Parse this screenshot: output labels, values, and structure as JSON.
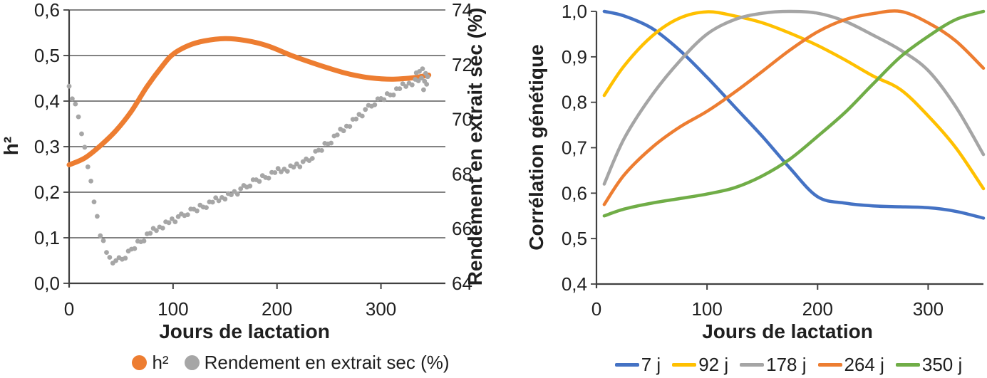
{
  "chart_data": [
    {
      "type": "line+scatter",
      "xlabel": "Jours de lactation",
      "x_ticks": [
        0,
        100,
        200,
        300
      ],
      "xlim": [
        0,
        362
      ],
      "ylabel_left": "h²",
      "ylim_left": [
        0.0,
        0.6
      ],
      "yticks_left": [
        "0,6",
        "0,5",
        "0,4",
        "0,3",
        "0,2",
        "0,1",
        "0,0"
      ],
      "ylabel_right": "Rendement en extrait sec (%)",
      "ylim_right": [
        64,
        74
      ],
      "yticks_right": [
        "74",
        "72",
        "70",
        "68",
        "66",
        "64"
      ],
      "grid": true,
      "legend_position": "bottom",
      "series": [
        {
          "name": "h²",
          "type": "line",
          "axis": "left",
          "color": "#ED7D31",
          "line_width": 7,
          "points": [
            [
              0,
              0.26
            ],
            [
              15,
              0.275
            ],
            [
              30,
              0.302
            ],
            [
              45,
              0.335
            ],
            [
              60,
              0.378
            ],
            [
              75,
              0.432
            ],
            [
              90,
              0.478
            ],
            [
              100,
              0.503
            ],
            [
              115,
              0.522
            ],
            [
              130,
              0.532
            ],
            [
              150,
              0.537
            ],
            [
              170,
              0.533
            ],
            [
              190,
              0.522
            ],
            [
              214,
              0.5
            ],
            [
              230,
              0.487
            ],
            [
              250,
              0.472
            ],
            [
              270,
              0.459
            ],
            [
              290,
              0.451
            ],
            [
              310,
              0.448
            ],
            [
              330,
              0.451
            ],
            [
              346,
              0.457
            ]
          ]
        },
        {
          "name": "Rendement en extrait sec (%)",
          "type": "scatter",
          "axis": "right",
          "color": "#A6A6A6",
          "marker_radius": 3.4,
          "points": [
            [
              0,
              71.21
            ],
            [
              3,
              70.75
            ],
            [
              6,
              70.56
            ],
            [
              9,
              70.09
            ],
            [
              12,
              69.47
            ],
            [
              15,
              68.98
            ],
            [
              18,
              68.26
            ],
            [
              21,
              67.74
            ],
            [
              24,
              66.98
            ],
            [
              27,
              66.45
            ],
            [
              30,
              65.74
            ],
            [
              33,
              65.56
            ],
            [
              36,
              65.13
            ],
            [
              39,
              64.95
            ],
            [
              42,
              64.74
            ],
            [
              45,
              64.83
            ],
            [
              48,
              64.94
            ],
            [
              51,
              64.88
            ],
            [
              54,
              64.92
            ],
            [
              57,
              65.18
            ],
            [
              60,
              65.25
            ],
            [
              63,
              65.27
            ],
            [
              66,
              65.54
            ],
            [
              69,
              65.52
            ],
            [
              72,
              65.55
            ],
            [
              75,
              65.81
            ],
            [
              78,
              65.83
            ],
            [
              81,
              66.01
            ],
            [
              84,
              65.93
            ],
            [
              87,
              66.06
            ],
            [
              90,
              66.02
            ],
            [
              93,
              66.25
            ],
            [
              96,
              66.22
            ],
            [
              99,
              66.36
            ],
            [
              102,
              66.25
            ],
            [
              105,
              66.44
            ],
            [
              108,
              66.54
            ],
            [
              111,
              66.48
            ],
            [
              114,
              66.51
            ],
            [
              117,
              66.72
            ],
            [
              120,
              66.71
            ],
            [
              123,
              66.65
            ],
            [
              126,
              66.86
            ],
            [
              129,
              66.79
            ],
            [
              132,
              66.77
            ],
            [
              135,
              66.98
            ],
            [
              138,
              66.97
            ],
            [
              141,
              67.13
            ],
            [
              144,
              67.02
            ],
            [
              147,
              67.14
            ],
            [
              150,
              67.08
            ],
            [
              153,
              67.28
            ],
            [
              156,
              67.24
            ],
            [
              159,
              67.36
            ],
            [
              162,
              67.26
            ],
            [
              165,
              67.46
            ],
            [
              168,
              67.58
            ],
            [
              171,
              67.52
            ],
            [
              174,
              67.56
            ],
            [
              177,
              67.79
            ],
            [
              180,
              67.79
            ],
            [
              183,
              67.73
            ],
            [
              186,
              67.94
            ],
            [
              189,
              67.87
            ],
            [
              192,
              67.85
            ],
            [
              195,
              68.06
            ],
            [
              198,
              68.05
            ],
            [
              201,
              68.2
            ],
            [
              204,
              68.08
            ],
            [
              207,
              68.18
            ],
            [
              210,
              68.1
            ],
            [
              213,
              68.3
            ],
            [
              216,
              68.25
            ],
            [
              219,
              68.37
            ],
            [
              222,
              68.26
            ],
            [
              225,
              68.45
            ],
            [
              228,
              68.55
            ],
            [
              231,
              68.49
            ],
            [
              234,
              68.57
            ],
            [
              237,
              68.83
            ],
            [
              240,
              68.87
            ],
            [
              243,
              68.86
            ],
            [
              246,
              69.12
            ],
            [
              249,
              69.1
            ],
            [
              252,
              69.13
            ],
            [
              255,
              69.39
            ],
            [
              258,
              69.43
            ],
            [
              261,
              69.64
            ],
            [
              264,
              69.58
            ],
            [
              267,
              69.75
            ],
            [
              270,
              69.74
            ],
            [
              273,
              70.0
            ],
            [
              276,
              70.01
            ],
            [
              279,
              70.18
            ],
            [
              282,
              70.12
            ],
            [
              285,
              70.36
            ],
            [
              288,
              70.51
            ],
            [
              291,
              70.48
            ],
            [
              294,
              70.53
            ],
            [
              297,
              70.75
            ],
            [
              300,
              70.76
            ],
            [
              303,
              70.72
            ],
            [
              306,
              70.94
            ],
            [
              309,
              70.89
            ],
            [
              312,
              70.89
            ],
            [
              315,
              71.12
            ],
            [
              318,
              71.12
            ],
            [
              321,
              71.3
            ],
            [
              324,
              71.2
            ],
            [
              327,
              71.32
            ],
            [
              330,
              71.26
            ],
            [
              333,
              71.46
            ],
            [
              336,
              71.41
            ],
            [
              339,
              71.51
            ],
            [
              342,
              71.39
            ],
            [
              345,
              71.56
            ],
            [
              334,
              71.7
            ],
            [
              337,
              71.75
            ],
            [
              340,
              71.85
            ],
            [
              343,
              71.68
            ],
            [
              344,
              71.28
            ],
            [
              341,
              71.08
            ]
          ]
        }
      ]
    },
    {
      "type": "line",
      "xlabel": "Jours de lactation",
      "x_ticks": [
        0,
        100,
        200,
        300
      ],
      "xlim": [
        0,
        350
      ],
      "ylabel": "Corrélation génétique",
      "ylim": [
        0.4,
        1.0
      ],
      "yticks": [
        "1,0",
        "0,9",
        "0,8",
        "0,7",
        "0,6",
        "0,5",
        "0,4"
      ],
      "grid": false,
      "legend_position": "bottom",
      "x": [
        7,
        25,
        50,
        75,
        100,
        125,
        150,
        175,
        200,
        225,
        250,
        275,
        300,
        325,
        350
      ],
      "series": [
        {
          "name": "7 j",
          "color": "#4472C4",
          "values": [
            1.0,
            0.99,
            0.963,
            0.915,
            0.855,
            0.79,
            0.725,
            0.655,
            0.592,
            0.578,
            0.572,
            0.57,
            0.568,
            0.56,
            0.545
          ]
        },
        {
          "name": "92 j",
          "color": "#FFC000",
          "values": [
            0.815,
            0.88,
            0.945,
            0.985,
            0.999,
            0.99,
            0.975,
            0.952,
            0.925,
            0.893,
            0.858,
            0.828,
            0.77,
            0.7,
            0.61
          ]
        },
        {
          "name": "178 j",
          "color": "#A5A5A5",
          "values": [
            0.62,
            0.72,
            0.815,
            0.89,
            0.95,
            0.982,
            0.996,
            1.0,
            0.996,
            0.978,
            0.948,
            0.915,
            0.87,
            0.79,
            0.685
          ]
        },
        {
          "name": "264 j",
          "color": "#ED7D31",
          "values": [
            0.575,
            0.64,
            0.7,
            0.745,
            0.78,
            0.822,
            0.868,
            0.915,
            0.955,
            0.982,
            0.995,
            1.0,
            0.975,
            0.935,
            0.875
          ]
        },
        {
          "name": "350 j",
          "color": "#70AD47",
          "values": [
            0.55,
            0.565,
            0.578,
            0.588,
            0.598,
            0.612,
            0.638,
            0.675,
            0.725,
            0.778,
            0.84,
            0.9,
            0.945,
            0.982,
            1.0
          ]
        }
      ]
    }
  ]
}
